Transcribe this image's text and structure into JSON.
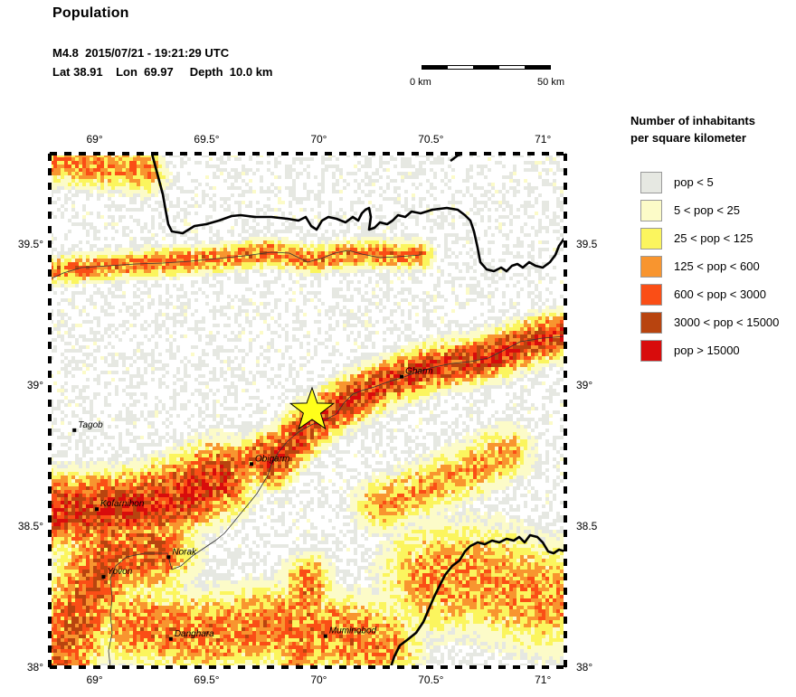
{
  "header": {
    "title": "Population",
    "event_line": "M4.8  2015/07/21 - 19:21:29 UTC",
    "location_line": "Lat 38.91    Lon  69.97     Depth  10.0 km"
  },
  "scale": {
    "left_label": "0 km",
    "right_label": "50 km"
  },
  "map": {
    "lon_range": [
      68.8,
      71.1
    ],
    "lat_range": [
      38.0,
      39.82
    ],
    "epicenter": {
      "lat": 38.91,
      "lon": 69.97,
      "marker_color": "#ffff1a"
    },
    "x_ticks": [
      {
        "value": 69.0,
        "label": "69°"
      },
      {
        "value": 69.5,
        "label": "69.5°"
      },
      {
        "value": 70.0,
        "label": "70°"
      },
      {
        "value": 70.5,
        "label": "70.5°"
      },
      {
        "value": 71.0,
        "label": "71°"
      }
    ],
    "y_ticks": [
      {
        "value": 39.5,
        "label": "39.5°"
      },
      {
        "value": 39.0,
        "label": "39°"
      },
      {
        "value": 38.5,
        "label": "38.5°"
      },
      {
        "value": 38.0,
        "label": "38°"
      }
    ],
    "cities": [
      {
        "name": "Tagob",
        "lat": 38.84,
        "lon": 68.91
      },
      {
        "name": "Gharm",
        "lat": 39.03,
        "lon": 70.37
      },
      {
        "name": "Obigarm",
        "lat": 38.72,
        "lon": 69.7
      },
      {
        "name": "Kofarnihon",
        "lat": 38.56,
        "lon": 69.01
      },
      {
        "name": "Norak",
        "lat": 38.39,
        "lon": 69.33
      },
      {
        "name": "Yovon",
        "lat": 38.32,
        "lon": 69.04
      },
      {
        "name": "Danghara",
        "lat": 38.1,
        "lon": 69.34
      },
      {
        "name": "Muminobod",
        "lat": 38.11,
        "lon": 70.03
      }
    ]
  },
  "legend": {
    "title_line1": "Number of inhabitants",
    "title_line2": "per square kilometer",
    "items": [
      {
        "label": "pop < 5",
        "color": "#e6e8e2"
      },
      {
        "label": "5 < pop < 25",
        "color": "#fcfbc8"
      },
      {
        "label": "25 < pop < 125",
        "color": "#fbf55e"
      },
      {
        "label": "125 < pop < 600",
        "color": "#f8952f"
      },
      {
        "label": "600 < pop < 3000",
        "color": "#fa4e16"
      },
      {
        "label": "3000 < pop < 15000",
        "color": "#b8440f"
      },
      {
        "label": "pop > 15000",
        "color": "#d80c0c"
      }
    ]
  }
}
